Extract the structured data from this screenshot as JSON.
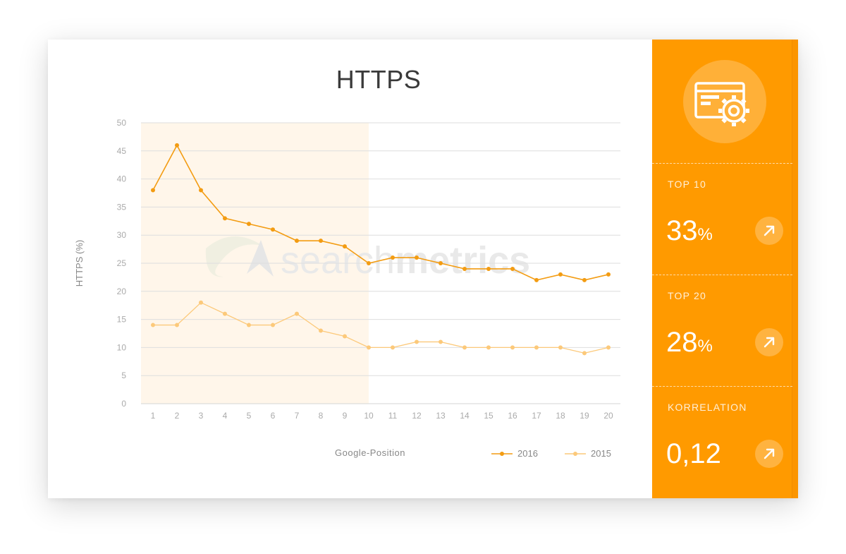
{
  "chart_data": {
    "type": "line",
    "title": "HTTPS",
    "xlabel": "Google-Position",
    "ylabel": "HTTPS (%)",
    "categories": [
      "1",
      "2",
      "3",
      "4",
      "5",
      "6",
      "7",
      "8",
      "9",
      "10",
      "11",
      "12",
      "13",
      "14",
      "15",
      "16",
      "17",
      "18",
      "19",
      "20"
    ],
    "yticks": [
      "0",
      "5",
      "10",
      "15",
      "20",
      "25",
      "30",
      "35",
      "40",
      "45",
      "50"
    ],
    "ylim": [
      0,
      50
    ],
    "highlight_range": [
      1,
      10
    ],
    "grid": true,
    "legend_position": "bottom-right",
    "series": [
      {
        "name": "2016",
        "color": "#f39c12",
        "values": [
          38,
          46,
          38,
          33,
          32,
          31,
          29,
          29,
          28,
          25,
          26,
          26,
          25,
          24,
          24,
          24,
          22,
          23,
          22,
          23
        ]
      },
      {
        "name": "2015",
        "color": "#fcc97a",
        "values": [
          14,
          14,
          18,
          16,
          14,
          14,
          16,
          13,
          12,
          10,
          10,
          11,
          11,
          10,
          10,
          10,
          10,
          10,
          9,
          10
        ]
      }
    ]
  },
  "watermark": {
    "text_light": "search",
    "text_bold": "metrics"
  },
  "panel": {
    "icon": "settings-window-icon",
    "accent_color": "#ff9a00",
    "stats": [
      {
        "label": "TOP 10",
        "value": "33",
        "unit": "%",
        "icon": "arrow-up-right-icon"
      },
      {
        "label": "TOP 20",
        "value": "28",
        "unit": "%",
        "icon": "arrow-up-right-icon"
      },
      {
        "label": "KORRELATION",
        "value": "0,12",
        "unit": "",
        "icon": "arrow-up-right-icon"
      }
    ]
  }
}
